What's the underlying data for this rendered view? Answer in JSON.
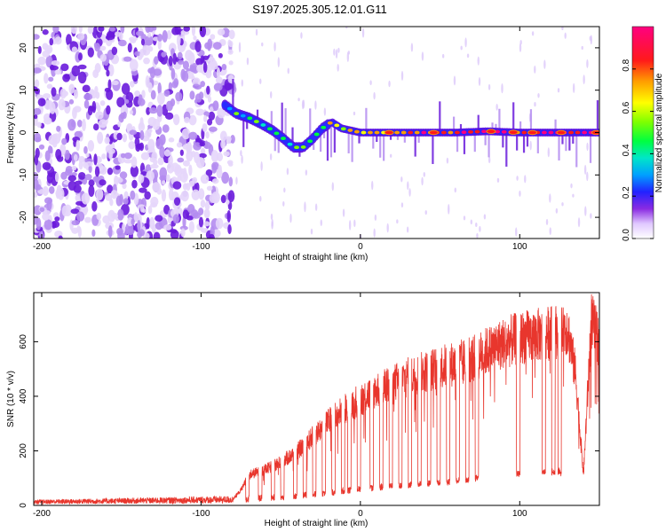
{
  "title": "S197.2025.305.12.01.G11",
  "chart_data": [
    {
      "type": "heatmap",
      "title": "S197.2025.305.12.01.G11",
      "xlabel": "Height of straight line (km)",
      "ylabel": "Frequency (Hz)",
      "xlim": [
        -205,
        150
      ],
      "ylim": [
        -25,
        25
      ],
      "xticks": [
        -200,
        -100,
        0,
        100
      ],
      "yticks": [
        -20,
        -10,
        0,
        10,
        20
      ],
      "colorbar": {
        "label": "Normalized spectral amplitude",
        "range": [
          0.0,
          1.0
        ],
        "ticks": [
          0.0,
          0.2,
          0.4,
          0.6,
          0.8
        ],
        "tick_labels": [
          "0.0",
          "0.2",
          "0.4",
          "0.6",
          "0.8"
        ]
      },
      "ridge": {
        "x": [
          -85,
          -78,
          -70,
          -62,
          -55,
          -48,
          -42,
          -36,
          -30,
          -24,
          -18,
          -12,
          0,
          20,
          40,
          60,
          80,
          100,
          120,
          150
        ],
        "freq": [
          6.5,
          4.5,
          3.5,
          2.0,
          0.5,
          -1.5,
          -3.5,
          -3.5,
          -1.5,
          1.0,
          2.5,
          1.0,
          0.0,
          0.0,
          0.0,
          0.0,
          0.3,
          0.0,
          0.0,
          0.0
        ],
        "amplitude": [
          0.2,
          0.35,
          0.45,
          0.5,
          0.5,
          0.45,
          0.45,
          0.5,
          0.55,
          0.55,
          0.55,
          0.6,
          0.65,
          0.75,
          0.8,
          0.85,
          0.95,
          0.85,
          0.95,
          0.9
        ]
      },
      "noise_region_x": [
        -205,
        -80
      ]
    },
    {
      "type": "line",
      "xlabel": "Height of straight line (km)",
      "ylabel": "SNR (10 * v/v)",
      "xlim": [
        -205,
        150
      ],
      "ylim": [
        0,
        780
      ],
      "xticks": [
        -200,
        -100,
        0,
        100
      ],
      "yticks": [
        0,
        200,
        400,
        600
      ],
      "series": [
        {
          "name": "SNR",
          "color": "#e8362d",
          "envelope_x": [
            -205,
            -80,
            -75,
            -70,
            -60,
            -50,
            -40,
            -30,
            -20,
            -10,
            0,
            10,
            20,
            30,
            40,
            50,
            60,
            70,
            80,
            90,
            100,
            110,
            120,
            125,
            130,
            135,
            140,
            145,
            150
          ],
          "envelope_y": [
            15,
            25,
            60,
            120,
            140,
            170,
            210,
            270,
            330,
            380,
            420,
            455,
            480,
            505,
            525,
            545,
            560,
            575,
            610,
            640,
            660,
            670,
            680,
            690,
            700,
            520,
            120,
            730,
            640
          ],
          "floor_x": [
            -205,
            -80,
            -70,
            -50,
            -30,
            0,
            30,
            60,
            90,
            110,
            125,
            140,
            150
          ],
          "floor_y": [
            12,
            15,
            25,
            30,
            40,
            60,
            75,
            90,
            110,
            120,
            125,
            20,
            100
          ],
          "dropouts_x": [
            -72,
            -64,
            -56,
            -50,
            -42,
            -36,
            -30,
            -24,
            -18,
            -12,
            -8,
            -2,
            6,
            12,
            18,
            24,
            30,
            36,
            42,
            48,
            54,
            60,
            66,
            72,
            98,
            114,
            120,
            124
          ]
        }
      ]
    }
  ]
}
